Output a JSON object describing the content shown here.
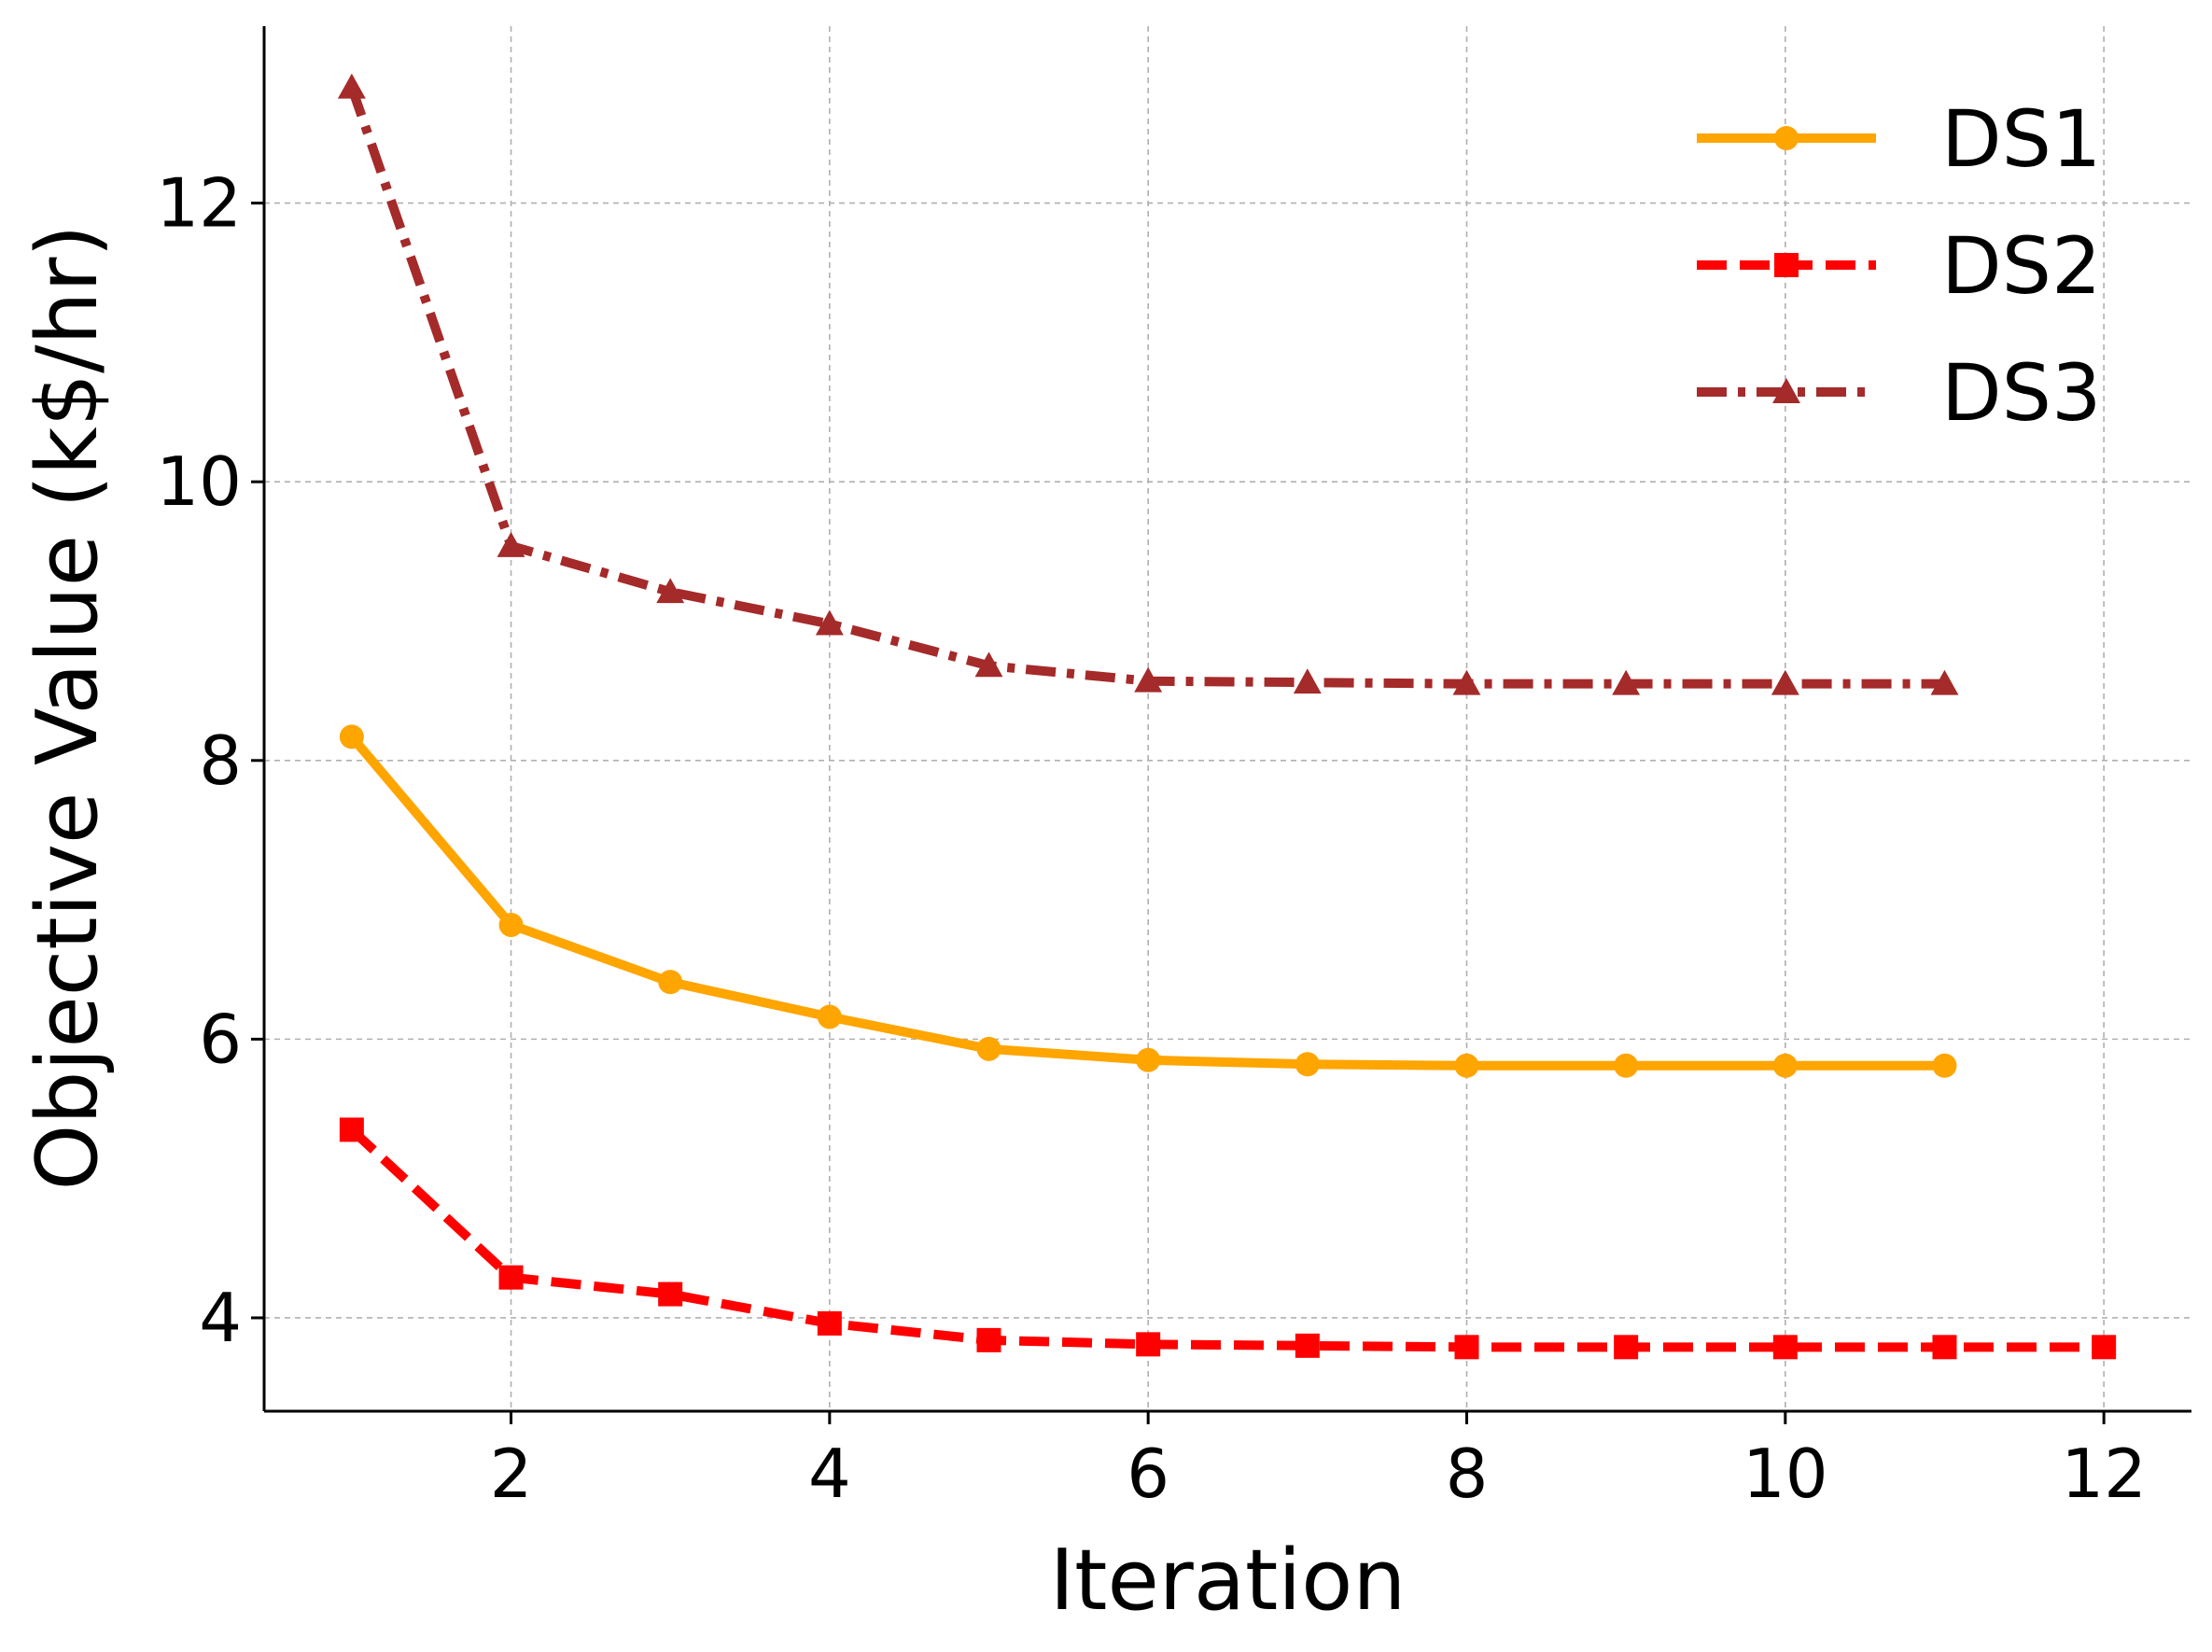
{
  "chart_data": {
    "type": "line",
    "title": "",
    "xlabel": "Iteration",
    "ylabel": "Objective Value (k$/hr)",
    "xlim": [
      0.45,
      12.55
    ],
    "ylim": [
      3.33,
      13.27
    ],
    "xticks": [
      2,
      4,
      6,
      8,
      10,
      12
    ],
    "xtick_labels": [
      "2",
      "4",
      "6",
      "8",
      "10",
      "12"
    ],
    "yticks": [
      4,
      6,
      8,
      10,
      12
    ],
    "ytick_labels": [
      "4",
      "6",
      "8",
      "10",
      "12"
    ],
    "grid": true,
    "legend_position": "top-right",
    "series": [
      {
        "name": "DS1",
        "color": "#FFA500",
        "linestyle": "solid",
        "marker": "circle",
        "x": [
          1,
          2,
          3,
          4,
          5,
          6,
          7,
          8,
          9,
          10,
          11
        ],
        "values": [
          8.17,
          6.82,
          6.41,
          6.16,
          5.93,
          5.85,
          5.82,
          5.81,
          5.81,
          5.81,
          5.81
        ]
      },
      {
        "name": "DS2",
        "color": "#FF0000",
        "linestyle": "dashed",
        "marker": "square",
        "x": [
          1,
          2,
          3,
          4,
          5,
          6,
          7,
          8,
          9,
          10,
          11,
          12
        ],
        "values": [
          5.35,
          4.29,
          4.17,
          3.96,
          3.84,
          3.81,
          3.8,
          3.79,
          3.79,
          3.79,
          3.79,
          3.79
        ]
      },
      {
        "name": "DS3",
        "color": "#A52A2A",
        "linestyle": "dashdot",
        "marker": "triangle",
        "x": [
          1,
          2,
          3,
          4,
          5,
          6,
          7,
          8,
          9,
          10,
          11
        ],
        "values": [
          12.83,
          9.54,
          9.21,
          8.98,
          8.68,
          8.57,
          8.56,
          8.55,
          8.55,
          8.55,
          8.55
        ]
      }
    ]
  }
}
